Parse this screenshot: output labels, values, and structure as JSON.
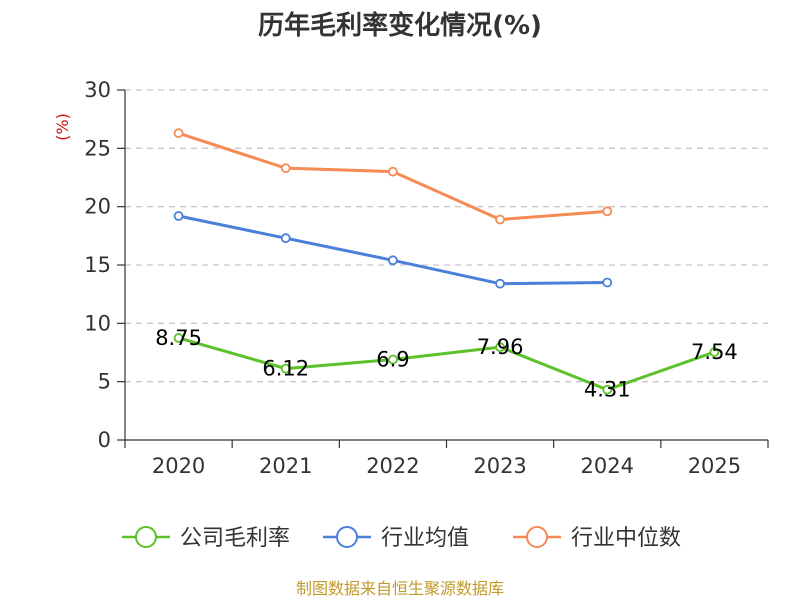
{
  "chart_data": {
    "type": "line",
    "title": "历年毛利率变化情况(%)",
    "ylabel": "(%)",
    "xlabel": "",
    "categories": [
      "2020",
      "2021",
      "2022",
      "2023",
      "2024",
      "2025"
    ],
    "ylim": [
      0,
      30
    ],
    "yticks": [
      0,
      5,
      10,
      15,
      20,
      25,
      30
    ],
    "grid": true,
    "legend_position": "bottom",
    "series": [
      {
        "name": "公司毛利率",
        "color": "#5cc12a",
        "values": [
          8.75,
          6.12,
          6.9,
          7.96,
          4.31,
          7.54
        ],
        "labels": [
          "8.75",
          "6.12",
          "6.9",
          "7.96",
          "4.31",
          "7.54"
        ]
      },
      {
        "name": "行业均值",
        "color": "#4a7fda",
        "values": [
          19.2,
          17.3,
          15.4,
          13.4,
          13.5,
          null
        ]
      },
      {
        "name": "行业中位数",
        "color": "#f68b53",
        "values": [
          26.3,
          23.3,
          23.0,
          18.9,
          19.6,
          null
        ]
      }
    ]
  },
  "footer": {
    "source": "制图数据来自恒生聚源数据库"
  }
}
